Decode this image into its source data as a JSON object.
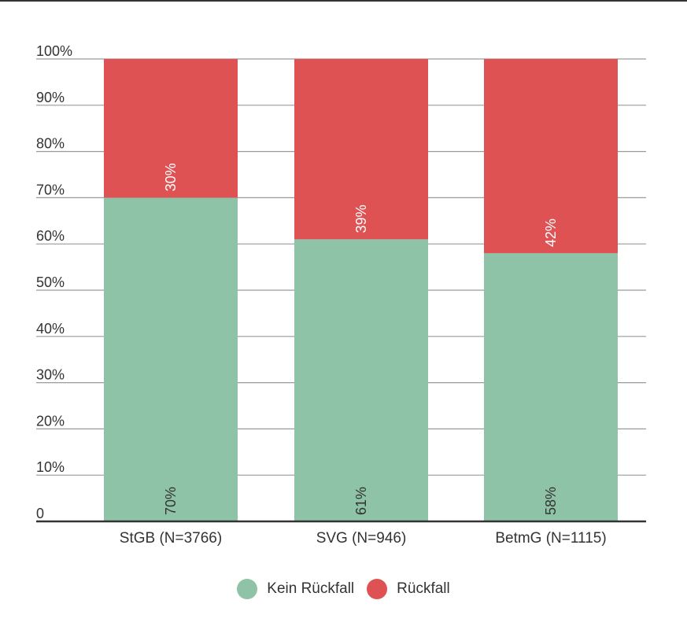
{
  "chart_data": {
    "type": "bar",
    "stacked": true,
    "categories": [
      "StGB (N=3766)",
      "SVG (N=946)",
      "BetmG (N=1115)"
    ],
    "series": [
      {
        "name": "Kein Rückfall",
        "values": [
          70,
          61,
          58
        ],
        "labels": [
          "70%",
          "61%",
          "58%"
        ],
        "color": "#8ec3a7"
      },
      {
        "name": "Rückfall",
        "values": [
          30,
          39,
          42
        ],
        "labels": [
          "30%",
          "39%",
          "42%"
        ],
        "color": "#de5254"
      }
    ],
    "yticks": [
      "0",
      "10%",
      "20%",
      "30%",
      "40%",
      "50%",
      "60%",
      "70%",
      "80%",
      "90%",
      "100%"
    ],
    "ylim": [
      0,
      100
    ],
    "grid": true,
    "legend_position": "bottom"
  }
}
